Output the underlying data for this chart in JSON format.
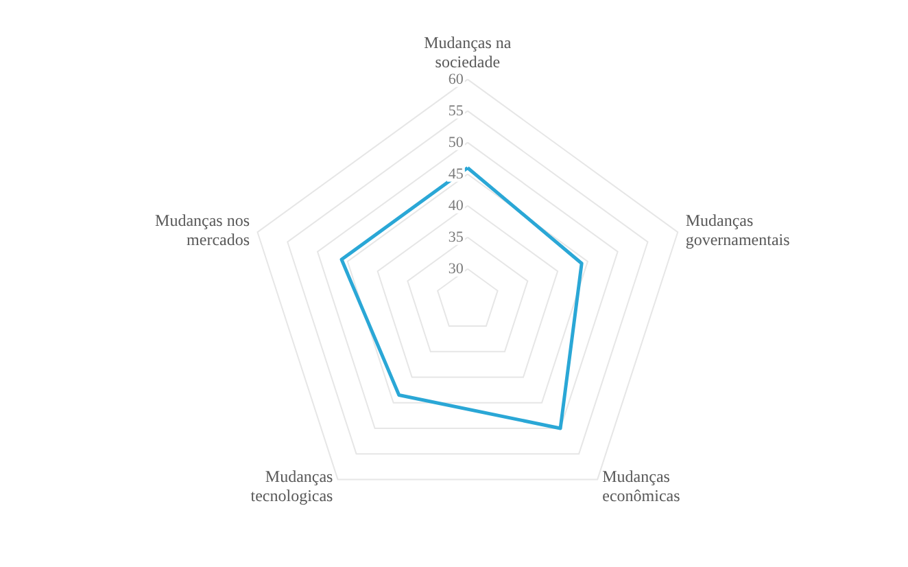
{
  "chart_data": {
    "type": "radar",
    "categories": [
      "Mudanças na\nsociedade",
      "Mudanças\ngovernamentais",
      "Mudanças\neconômicas",
      "Mudanças\ntecnologicas",
      "Mudanças nos\nmercados"
    ],
    "series": [
      {
        "color": "#2aa7d6",
        "values": [
          46,
          44,
          50,
          43.5,
          46
        ]
      }
    ],
    "ylim": [
      25,
      60
    ],
    "yticks": [
      30,
      35,
      40,
      45,
      50,
      55,
      60
    ],
    "grid": true,
    "marker": "none"
  }
}
